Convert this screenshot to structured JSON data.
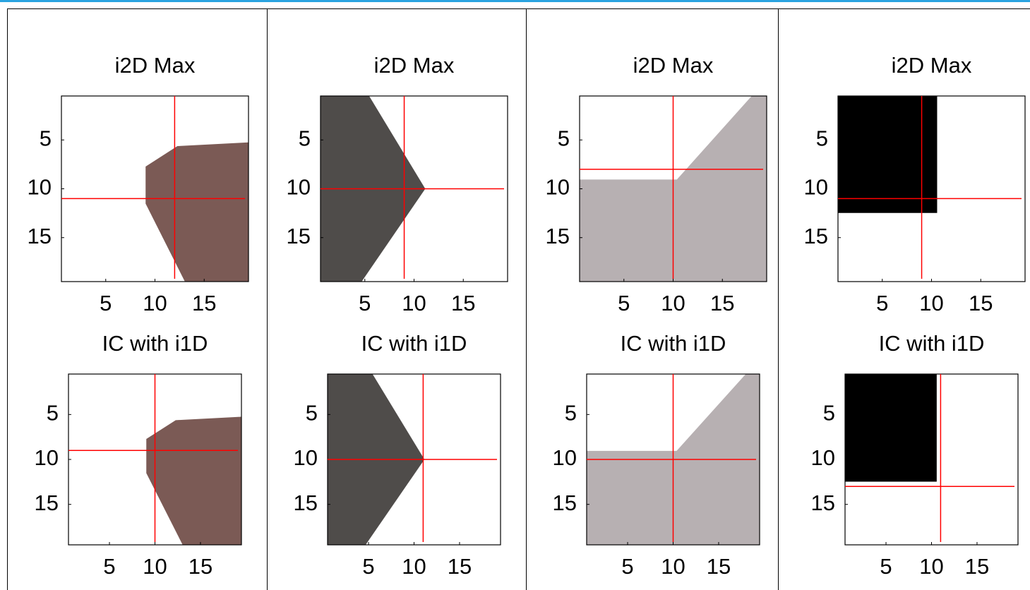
{
  "chart_data": [
    {
      "type": "image",
      "title": "i2D Max",
      "xlim": [
        0.5,
        19.5
      ],
      "ylim": [
        0.5,
        19.5
      ],
      "xticks": [
        5,
        10,
        15
      ],
      "yticks": [
        5,
        10,
        15
      ],
      "crosshair": {
        "x": 12,
        "y": 11
      },
      "crosshair_color": "#ff0000"
    },
    {
      "type": "image",
      "title": "IC with i1D",
      "xlim": [
        0.5,
        19.5
      ],
      "ylim": [
        0.5,
        19.5
      ],
      "xticks": [
        5,
        10,
        15
      ],
      "yticks": [
        5,
        10,
        15
      ],
      "crosshair": {
        "x": 10,
        "y": 9
      },
      "crosshair_color": "#ff0000"
    },
    {
      "type": "image",
      "title": "i2D Max",
      "xlim": [
        0.5,
        19.5
      ],
      "ylim": [
        0.5,
        19.5
      ],
      "xticks": [
        5,
        10,
        15
      ],
      "yticks": [
        5,
        10,
        15
      ],
      "crosshair": {
        "x": 9,
        "y": 10
      },
      "crosshair_color": "#ff0000"
    },
    {
      "type": "image",
      "title": "IC with i1D",
      "xlim": [
        0.5,
        19.5
      ],
      "ylim": [
        0.5,
        19.5
      ],
      "xticks": [
        5,
        10,
        15
      ],
      "yticks": [
        5,
        10,
        15
      ],
      "crosshair": {
        "x": 11,
        "y": 10
      },
      "crosshair_color": "#ff0000"
    },
    {
      "type": "image",
      "title": "i2D Max",
      "xlim": [
        0.5,
        19.5
      ],
      "ylim": [
        0.5,
        19.5
      ],
      "xticks": [
        5,
        10,
        15
      ],
      "yticks": [
        5,
        10,
        15
      ],
      "crosshair": {
        "x": 10,
        "y": 8
      },
      "crosshair_color": "#ff0000"
    },
    {
      "type": "image",
      "title": "IC with i1D",
      "xlim": [
        0.5,
        19.5
      ],
      "ylim": [
        0.5,
        19.5
      ],
      "xticks": [
        5,
        10,
        15
      ],
      "yticks": [
        5,
        10,
        15
      ],
      "crosshair": {
        "x": 10,
        "y": 10
      },
      "crosshair_color": "#ff0000"
    },
    {
      "type": "image",
      "title": "i2D Max",
      "xlim": [
        0.5,
        19.5
      ],
      "ylim": [
        0.5,
        19.5
      ],
      "xticks": [
        5,
        10,
        15
      ],
      "yticks": [
        5,
        10,
        15
      ],
      "crosshair": {
        "x": 9,
        "y": 11
      },
      "crosshair_color": "#ff0000"
    },
    {
      "type": "image",
      "title": "IC with i1D",
      "xlim": [
        0.5,
        19.5
      ],
      "ylim": [
        0.5,
        19.5
      ],
      "xticks": [
        5,
        10,
        15
      ],
      "yticks": [
        5,
        10,
        15
      ],
      "crosshair": {
        "x": 11,
        "y": 13
      },
      "crosshair_color": "#ff0000"
    }
  ]
}
